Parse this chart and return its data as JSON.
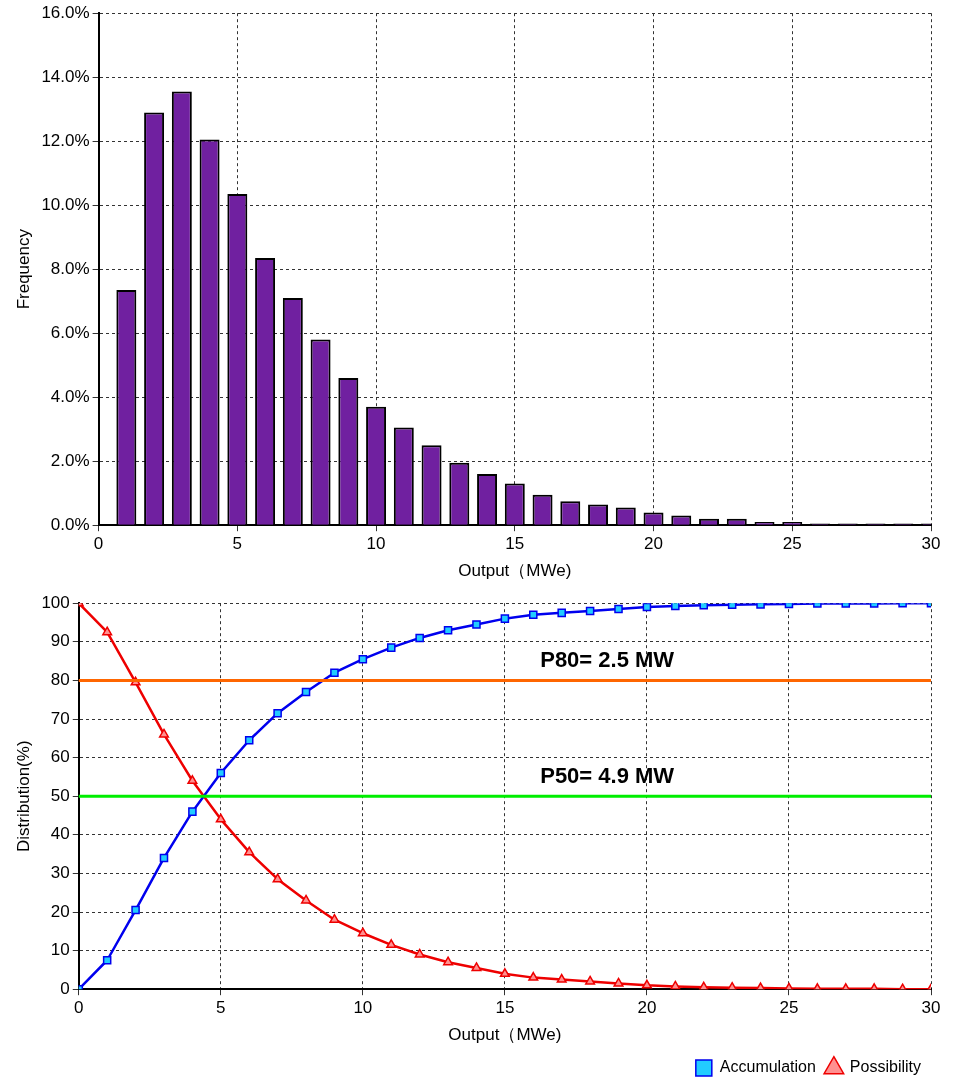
{
  "chart_data": [
    {
      "type": "bar",
      "xlabel": "Output（MWe)",
      "ylabel": "Frequency",
      "x": [
        1,
        2,
        3,
        4,
        5,
        6,
        7,
        8,
        9,
        10,
        11,
        12,
        13,
        14,
        15,
        16,
        17,
        18,
        19,
        20,
        21,
        22,
        23,
        24,
        25,
        26,
        27,
        28,
        29,
        30
      ],
      "values": [
        7.35,
        12.9,
        13.55,
        12.05,
        10.35,
        8.35,
        7.1,
        5.8,
        4.6,
        3.7,
        3.05,
        2.5,
        1.95,
        1.6,
        1.3,
        0.95,
        0.75,
        0.65,
        0.55,
        0.4,
        0.3,
        0.2,
        0.2,
        0.1,
        0.1,
        0.05,
        0.05,
        0.05,
        0.05,
        0.05
      ],
      "color": "#7020a0",
      "xlim": [
        0,
        30
      ],
      "xticks": [
        0,
        5,
        10,
        15,
        20,
        25,
        30
      ],
      "ylim": [
        0,
        16
      ],
      "yticks": [
        {
          "value": 0,
          "label": "0.0%"
        },
        {
          "value": 2,
          "label": "2.0%"
        },
        {
          "value": 4,
          "label": "4.0%"
        },
        {
          "value": 6,
          "label": "6.0%"
        },
        {
          "value": 8,
          "label": "8.0%"
        },
        {
          "value": 10,
          "label": "10.0%"
        },
        {
          "value": 12,
          "label": "12.0%"
        },
        {
          "value": 14,
          "label": "14.0%"
        },
        {
          "value": 16,
          "label": "16.0%"
        }
      ],
      "grid": true
    },
    {
      "type": "line",
      "xlabel": "Output（MWe)",
      "ylabel": "Distribution(%)",
      "x": [
        0,
        1,
        2,
        3,
        4,
        5,
        6,
        7,
        8,
        9,
        10,
        11,
        12,
        13,
        14,
        15,
        16,
        17,
        18,
        19,
        20,
        21,
        22,
        23,
        24,
        25,
        26,
        27,
        28,
        29,
        30
      ],
      "series": [
        {
          "name": "Accumulation",
          "color": "#0000ee",
          "marker": "square",
          "values": [
            0,
            7.5,
            20.5,
            34,
            46,
            56,
            64.5,
            71.5,
            77,
            82,
            85.5,
            88.5,
            91,
            93,
            94.5,
            96,
            97,
            97.5,
            98,
            98.5,
            99,
            99.3,
            99.5,
            99.6,
            99.7,
            99.8,
            99.9,
            99.9,
            99.9,
            100,
            100
          ]
        },
        {
          "name": "Possibility",
          "color": "#ee0000",
          "marker": "triangle",
          "values": [
            100,
            92.5,
            79.5,
            66,
            54,
            44,
            35.5,
            28.5,
            23,
            18,
            14.5,
            11.5,
            9,
            7,
            5.5,
            4,
            3,
            2.5,
            2,
            1.5,
            1,
            0.7,
            0.5,
            0.4,
            0.3,
            0.2,
            0.1,
            0.1,
            0.1,
            0,
            0
          ]
        }
      ],
      "xlim": [
        0,
        30
      ],
      "xticks": [
        0,
        5,
        10,
        15,
        20,
        25,
        30
      ],
      "ylim": [
        0,
        100
      ],
      "yticks": [
        0,
        10,
        20,
        30,
        40,
        50,
        60,
        70,
        80,
        90,
        100
      ],
      "ref_lines": [
        {
          "axis": "y",
          "value": 80,
          "label": "P80= 2.5 MW",
          "color": "#ff6600"
        },
        {
          "axis": "y",
          "value": 50,
          "label": "P50= 4.9 MW",
          "color": "#00ee00"
        }
      ],
      "grid": true,
      "legend": "bottom right"
    }
  ]
}
